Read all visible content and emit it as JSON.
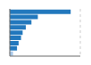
{
  "chart_data": {
    "type": "bar",
    "orientation": "horizontal",
    "categories": [
      null,
      null,
      null,
      null,
      null,
      null,
      null,
      null,
      null
    ],
    "values": [
      76,
      35,
      27,
      20,
      16,
      14,
      11,
      9,
      4
    ],
    "colors": [
      "#2278bd",
      "#2278bd",
      "#2278bd",
      "#2278bd",
      "#2278bd",
      "#2278bd",
      "#2278bd",
      "#2278bd",
      "#a8c8e8"
    ],
    "xlim": [
      0,
      88
    ],
    "xticks": [
      0,
      20,
      40,
      60,
      80
    ],
    "grid": true,
    "tick_labels": false
  }
}
